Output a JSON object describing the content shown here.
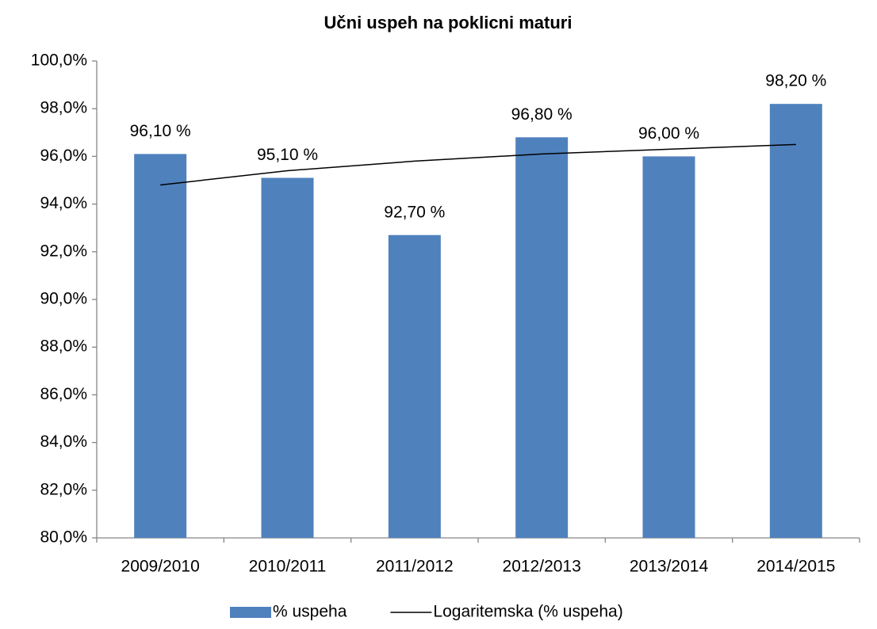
{
  "chart_data": {
    "type": "bar",
    "title": "Učni uspeh na poklicni maturi",
    "categories": [
      "2009/2010",
      "2010/2011",
      "2011/2012",
      "2012/2013",
      "2013/2014",
      "2014/2015"
    ],
    "series": [
      {
        "name": "% uspeha",
        "type": "bar",
        "color": "#4f81bd",
        "values": [
          96.1,
          95.1,
          92.7,
          96.8,
          96.0,
          98.2
        ],
        "value_labels": [
          "96,10 %",
          "95,10 %",
          "92,70 %",
          "96,80 %",
          "96,00 %",
          "98,20 %"
        ]
      },
      {
        "name": "Logaritemska (% uspeha)",
        "type": "line",
        "color": "#000000",
        "values": [
          94.8,
          95.4,
          95.8,
          96.1,
          96.3,
          96.5
        ]
      }
    ],
    "ylim": [
      80,
      100
    ],
    "yticks": [
      {
        "value": 80,
        "label": "80,0%"
      },
      {
        "value": 82,
        "label": "82,0%"
      },
      {
        "value": 84,
        "label": "84,0%"
      },
      {
        "value": 86,
        "label": "86,0%"
      },
      {
        "value": 88,
        "label": "88,0%"
      },
      {
        "value": 90,
        "label": "90,0%"
      },
      {
        "value": 92,
        "label": "92,0%"
      },
      {
        "value": 94,
        "label": "94,0%"
      },
      {
        "value": 96,
        "label": "96,0%"
      },
      {
        "value": 98,
        "label": "98,0%"
      },
      {
        "value": 100,
        "label": "100,0%"
      }
    ],
    "grid": false,
    "legend": "bottom"
  }
}
